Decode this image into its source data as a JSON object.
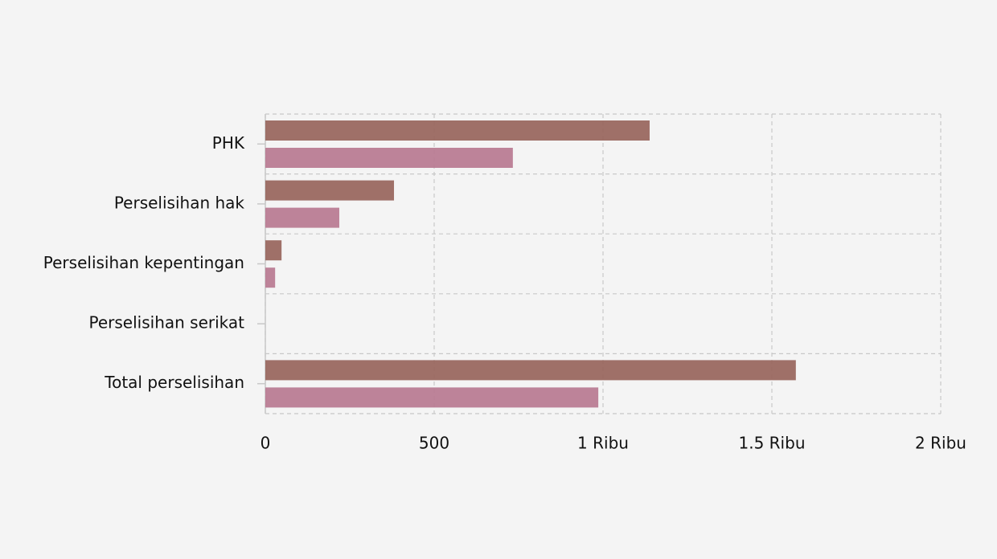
{
  "chart_data": {
    "type": "hbar",
    "categories": [
      "PHK",
      "Perselisihan hak",
      "Perselisihan kepentingan",
      "Perselisihan serikat",
      "Total perselisihan"
    ],
    "series": [
      {
        "color": "#9a6860",
        "values": [
          1138,
          381,
          48,
          0,
          1571
        ]
      },
      {
        "color": "#b97c93",
        "values": [
          733,
          219,
          29,
          0,
          986
        ]
      }
    ],
    "xlim": [
      0,
      2000
    ],
    "xticks": [
      0,
      500,
      {
        "value": 1000,
        "label": "1 Ribu"
      },
      {
        "value": 1500,
        "label": "1.5 Ribu"
      },
      {
        "value": 2000,
        "label": "2 Ribu"
      }
    ],
    "grid": true
  }
}
